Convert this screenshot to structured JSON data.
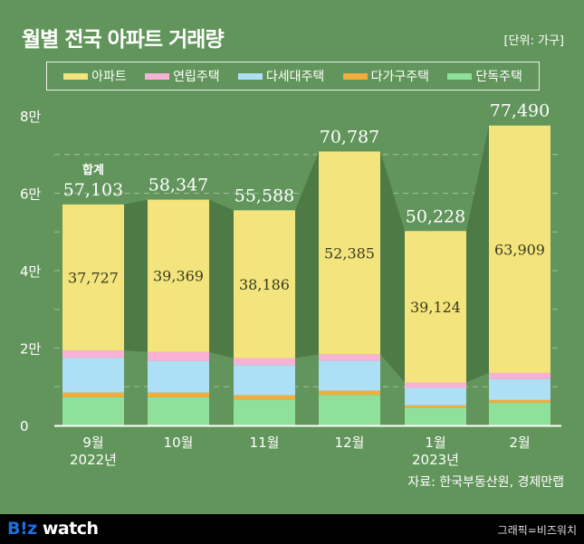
{
  "header": {
    "title": "월별 전국 아파트 거래량",
    "unit": "[단위: 가구]"
  },
  "chart_data": {
    "type": "bar",
    "stacked": true,
    "title": "월별 전국 아파트 거래량",
    "categories": [
      "9월",
      "10월",
      "11월",
      "12월",
      "1월",
      "2월"
    ],
    "year_labels": [
      "2022년",
      "",
      "",
      "",
      "2023년",
      ""
    ],
    "ylim": [
      0,
      80000
    ],
    "yticks": [
      0,
      20000,
      40000,
      60000,
      80000
    ],
    "ytick_labels": [
      "0",
      "2만",
      "4만",
      "6만",
      "8만"
    ],
    "grid": true,
    "legend": "top",
    "total_label": "합계",
    "totals": [
      57103,
      58347,
      55588,
      70787,
      50228,
      77490
    ],
    "total_labels": [
      "57,103",
      "58,347",
      "55,588",
      "70,787",
      "50,228",
      "77,490"
    ],
    "apartment_labels": [
      "37,727",
      "39,369",
      "38,186",
      "52,385",
      "39,124",
      "63,909"
    ],
    "series": [
      {
        "name": "단독주택",
        "color": "#8ee09a",
        "values": [
          7300,
          7278,
          6700,
          7900,
          4604,
          5881
        ]
      },
      {
        "name": "다가구주택",
        "color": "#f2ad3c",
        "values": [
          1200,
          1200,
          1100,
          1100,
          600,
          700
        ]
      },
      {
        "name": "다세대주택",
        "color": "#ade0f5",
        "values": [
          9000,
          8200,
          7800,
          7700,
          4500,
          5400
        ]
      },
      {
        "name": "연립주택",
        "color": "#f9b2d6",
        "values": [
          1876,
          2300,
          1802,
          1702,
          1400,
          1600
        ]
      },
      {
        "name": "아파트",
        "color": "#f4e47e",
        "values": [
          37727,
          39369,
          38186,
          52385,
          39124,
          63909
        ]
      }
    ],
    "legend_order": [
      4,
      3,
      2,
      1,
      0
    ]
  },
  "colors": {
    "background": "#62955b",
    "connector": "#4e7a46"
  },
  "source": "자료: 한국부동산원, 경제만랩",
  "footer": {
    "logo": "B!z watch",
    "logo_b": "B!z",
    "logo_rest": " watch",
    "credit": "그래픽=비즈워치"
  }
}
